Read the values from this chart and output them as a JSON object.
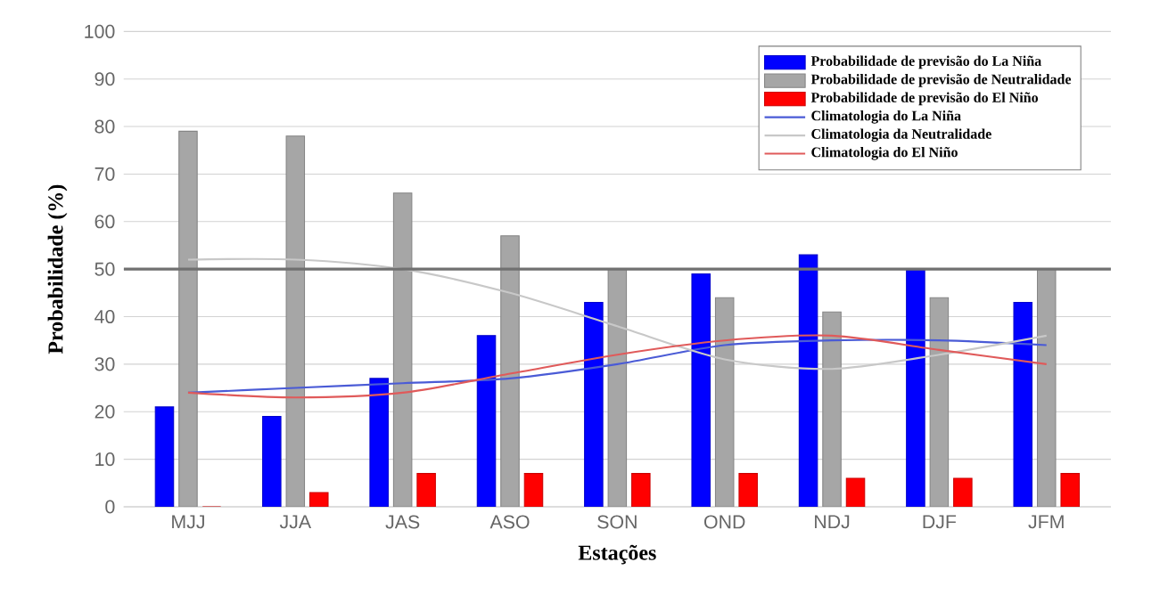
{
  "chart_data": {
    "type": "bar",
    "xlabel": "Estações",
    "ylabel": "Probabilidade (%)",
    "categories": [
      "MJJ",
      "JJA",
      "JAS",
      "ASO",
      "SON",
      "OND",
      "NDJ",
      "DJF",
      "JFM"
    ],
    "series": [
      {
        "name": "Probabilidade de previsão do La Niña",
        "color": "#0000ff",
        "values": [
          21,
          19,
          27,
          36,
          43,
          49,
          53,
          50,
          43
        ]
      },
      {
        "name": "Probabilidade de previsão de Neutralidade",
        "color": "#a6a6a6",
        "values": [
          79,
          78,
          66,
          57,
          50,
          44,
          41,
          44,
          50
        ]
      },
      {
        "name": "Probabilidade de previsão do El Niño",
        "color": "#ff0000",
        "values": [
          0,
          3,
          7,
          7,
          7,
          7,
          6,
          6,
          7
        ]
      },
      {
        "name": "Climatologia do La Niña",
        "type": "line",
        "color": "#4a5bd6",
        "values": [
          24,
          25,
          26,
          27,
          30,
          34,
          35,
          35,
          34
        ]
      },
      {
        "name": "Climatologia da Neutralidade",
        "type": "line",
        "color": "#c8c8c8",
        "values": [
          52,
          52,
          50,
          45,
          38,
          31,
          29,
          32,
          36
        ]
      },
      {
        "name": "Climatologia do El Niño",
        "type": "line",
        "color": "#e05a5a",
        "values": [
          24,
          23,
          24,
          28,
          32,
          35,
          36,
          33,
          30
        ]
      }
    ],
    "ylim": [
      0,
      100
    ],
    "yticks": [
      0,
      10,
      20,
      30,
      40,
      50,
      60,
      70,
      80,
      90,
      100
    ],
    "grid": "y",
    "legend": "top right",
    "ref_lines": [
      {
        "axis": "y",
        "value": 50,
        "color": "#707070"
      }
    ]
  }
}
